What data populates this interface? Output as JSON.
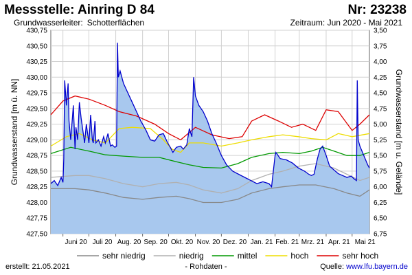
{
  "header": {
    "title": "Messstelle: Ainring D 84",
    "number": "Nr: 23238",
    "aquifer_label": "Grundwasserleiter:",
    "aquifer_value": "Schotterflächen",
    "period": "Zeitraum: Jun 2020 - Mai 2021"
  },
  "footer": {
    "created_label": "erstellt:",
    "created_date": "21.05.2021",
    "raw_note": "- Rohdaten -",
    "source_label": "Quelle:",
    "source_url": "www.lfu.bayern.de"
  },
  "colors": {
    "measured_line": "#0000cc",
    "measured_fill": "#a8c8ee",
    "sehr_niedrig": "#888888",
    "niedrig": "#b0b0b0",
    "mittel": "#009900",
    "hoch": "#eedd00",
    "sehr_hoch": "#dd0000"
  },
  "chart_data": {
    "type": "line",
    "ylabel_left": "Grundwasserstand [m ü. NN]",
    "ylabel_right": "Grundwasserstand [m u. Gelände]",
    "ylim_left": [
      427.5,
      430.75
    ],
    "ylim_right": [
      6.75,
      3.5
    ],
    "yticks_left": [
      "427,50",
      "427,75",
      "428,00",
      "428,25",
      "428,50",
      "428,75",
      "429,00",
      "429,25",
      "429,50",
      "429,75",
      "430,00",
      "430,25",
      "430,50",
      "430,75"
    ],
    "yticks_right": [
      "6,75",
      "6,50",
      "6,25",
      "6,00",
      "5,75",
      "5,50",
      "5,25",
      "5,00",
      "4,75",
      "4,50",
      "4,25",
      "4,00",
      "3,75",
      "3,50"
    ],
    "x_ticks": [
      "Juni 20",
      "Juli 20",
      "Aug. 20",
      "Sep. 20",
      "Okt. 20",
      "Nov. 20",
      "Dez. 20",
      "Jan. 21",
      "Feb. 21",
      "Mrz. 21",
      "Apr. 21",
      "Mai 21"
    ],
    "x_range": [
      "2020-05-18",
      "2021-05-21"
    ],
    "grid": true,
    "legend": [
      "sehr niedrig",
      "niedrig",
      "mittel",
      "hoch",
      "sehr hoch"
    ],
    "series": [
      {
        "name": "Rohdaten",
        "color": "#0000cc",
        "x": [
          "2020-05-18",
          "2020-05-22",
          "2020-05-26",
          "2020-05-30",
          "2020-06-01",
          "2020-06-02",
          "2020-06-03",
          "2020-06-05",
          "2020-06-07",
          "2020-06-08",
          "2020-06-10",
          "2020-06-13",
          "2020-06-15",
          "2020-06-16",
          "2020-06-18",
          "2020-06-20",
          "2020-06-22",
          "2020-06-26",
          "2020-06-28",
          "2020-07-01",
          "2020-07-03",
          "2020-07-05",
          "2020-07-06",
          "2020-07-08",
          "2020-07-09",
          "2020-07-12",
          "2020-07-15",
          "2020-07-18",
          "2020-07-20",
          "2020-07-23",
          "2020-07-26",
          "2020-07-28",
          "2020-07-31",
          "2020-08-02",
          "2020-08-03",
          "2020-08-04",
          "2020-08-06",
          "2020-08-10",
          "2020-08-15",
          "2020-08-20",
          "2020-08-25",
          "2020-08-30",
          "2020-09-05",
          "2020-09-10",
          "2020-09-15",
          "2020-09-20",
          "2020-09-25",
          "2020-09-30",
          "2020-10-03",
          "2020-10-06",
          "2020-10-10",
          "2020-10-15",
          "2020-10-18",
          "2020-10-22",
          "2020-10-25",
          "2020-10-28",
          "2020-10-30",
          "2020-11-01",
          "2020-11-05",
          "2020-11-10",
          "2020-11-15",
          "2020-11-20",
          "2020-11-25",
          "2020-12-01",
          "2020-12-07",
          "2020-12-14",
          "2020-12-21",
          "2020-12-28",
          "2021-01-04",
          "2021-01-11",
          "2021-01-18",
          "2021-01-25",
          "2021-01-28",
          "2021-02-01",
          "2021-02-02",
          "2021-02-07",
          "2021-02-14",
          "2021-02-21",
          "2021-02-28",
          "2021-03-07",
          "2021-03-12",
          "2021-03-15",
          "2021-03-18",
          "2021-03-22",
          "2021-03-25",
          "2021-03-28",
          "2021-04-01",
          "2021-04-05",
          "2021-04-10",
          "2021-04-15",
          "2021-04-20",
          "2021-04-25",
          "2021-04-30",
          "2021-05-03",
          "2021-05-05",
          "2021-05-06",
          "2021-05-07",
          "2021-05-08",
          "2021-05-10",
          "2021-05-13",
          "2021-05-16",
          "2021-05-19",
          "2021-05-21"
        ],
        "y": [
          428.3,
          428.35,
          428.27,
          428.4,
          428.32,
          428.7,
          429.95,
          429.55,
          429.9,
          429.3,
          429.0,
          429.55,
          428.85,
          429.2,
          429.0,
          429.6,
          429.35,
          428.95,
          429.25,
          428.95,
          429.4,
          429.0,
          428.95,
          429.3,
          428.95,
          429.0,
          428.9,
          429.05,
          428.95,
          429.1,
          428.9,
          428.92,
          428.88,
          428.9,
          430.55,
          430.0,
          430.1,
          429.9,
          429.75,
          429.6,
          429.45,
          429.3,
          429.15,
          429.0,
          428.98,
          429.08,
          429.1,
          428.95,
          428.88,
          428.8,
          428.88,
          428.9,
          428.85,
          428.92,
          429.18,
          429.05,
          430.0,
          429.7,
          429.55,
          429.45,
          429.3,
          429.1,
          428.95,
          428.75,
          428.6,
          428.5,
          428.45,
          428.4,
          428.35,
          428.3,
          428.33,
          428.3,
          428.25,
          428.75,
          428.8,
          428.7,
          428.68,
          428.63,
          428.55,
          428.5,
          428.45,
          428.43,
          428.45,
          428.7,
          428.85,
          428.9,
          428.75,
          428.58,
          428.52,
          428.46,
          428.43,
          428.4,
          428.42,
          428.38,
          428.36,
          428.35,
          429.95,
          429.0,
          428.9,
          428.8,
          428.7,
          428.6,
          428.55
        ]
      },
      {
        "name": "sehr niedrig",
        "color": "#888888",
        "x": [
          "2020-05-18",
          "2020-06-15",
          "2020-07-01",
          "2020-07-20",
          "2020-08-10",
          "2020-09-01",
          "2020-09-20",
          "2020-10-10",
          "2020-10-25",
          "2020-11-10",
          "2020-12-01",
          "2020-12-20",
          "2021-01-05",
          "2021-01-25",
          "2021-02-10",
          "2021-03-01",
          "2021-03-20",
          "2021-04-10",
          "2021-04-25",
          "2021-05-10",
          "2021-05-21"
        ],
        "y": [
          428.22,
          428.22,
          428.2,
          428.15,
          428.08,
          428.05,
          428.08,
          428.1,
          428.06,
          428.0,
          428.0,
          428.05,
          428.15,
          428.22,
          428.25,
          428.28,
          428.28,
          428.22,
          428.15,
          428.1,
          428.2
        ]
      },
      {
        "name": "niedrig",
        "color": "#b0b0b0",
        "x": [
          "2020-05-18",
          "2020-06-15",
          "2020-07-01",
          "2020-07-20",
          "2020-08-10",
          "2020-09-01",
          "2020-09-20",
          "2020-10-10",
          "2020-10-25",
          "2020-11-10",
          "2020-12-01",
          "2020-12-20",
          "2021-01-05",
          "2021-01-25",
          "2021-02-10",
          "2021-03-01",
          "2021-03-20",
          "2021-04-10",
          "2021-04-25",
          "2021-05-10",
          "2021-05-21"
        ],
        "y": [
          428.4,
          428.43,
          428.43,
          428.38,
          428.3,
          428.25,
          428.3,
          428.32,
          428.28,
          428.2,
          428.15,
          428.22,
          428.35,
          428.45,
          428.5,
          428.58,
          428.62,
          428.55,
          428.45,
          428.35,
          428.4
        ]
      },
      {
        "name": "mittel",
        "color": "#009900",
        "x": [
          "2020-05-18",
          "2020-06-10",
          "2020-07-01",
          "2020-07-20",
          "2020-08-10",
          "2020-09-01",
          "2020-09-20",
          "2020-10-10",
          "2020-10-25",
          "2020-11-10",
          "2020-12-01",
          "2020-12-20",
          "2021-01-05",
          "2021-01-25",
          "2021-02-10",
          "2021-03-01",
          "2021-03-15",
          "2021-03-28",
          "2021-04-10",
          "2021-04-25",
          "2021-05-10",
          "2021-05-21"
        ],
        "y": [
          428.78,
          428.88,
          428.82,
          428.76,
          428.74,
          428.72,
          428.72,
          428.65,
          428.6,
          428.56,
          428.55,
          428.62,
          428.72,
          428.78,
          428.8,
          428.78,
          428.82,
          428.88,
          428.82,
          428.75,
          428.75,
          428.8
        ]
      },
      {
        "name": "hoch",
        "color": "#eedd00",
        "x": [
          "2020-05-18",
          "2020-06-05",
          "2020-06-20",
          "2020-07-05",
          "2020-07-20",
          "2020-08-05",
          "2020-08-20",
          "2020-09-10",
          "2020-09-25",
          "2020-10-05",
          "2020-10-15",
          "2020-10-25",
          "2020-11-10",
          "2020-12-01",
          "2020-12-20",
          "2021-01-05",
          "2021-01-25",
          "2021-02-10",
          "2021-02-28",
          "2021-03-15",
          "2021-04-01",
          "2021-04-15",
          "2021-05-01",
          "2021-05-21"
        ],
        "y": [
          428.9,
          429.05,
          429.1,
          429.0,
          428.95,
          429.18,
          429.2,
          429.18,
          429.0,
          428.85,
          428.8,
          428.95,
          428.95,
          428.9,
          428.95,
          429.0,
          429.05,
          429.08,
          429.05,
          429.02,
          429.0,
          429.1,
          429.05,
          429.1
        ]
      },
      {
        "name": "sehr hoch",
        "color": "#dd0000",
        "x": [
          "2020-05-18",
          "2020-06-01",
          "2020-06-15",
          "2020-07-01",
          "2020-07-20",
          "2020-08-05",
          "2020-08-25",
          "2020-09-15",
          "2020-10-01",
          "2020-10-15",
          "2020-11-01",
          "2020-11-20",
          "2020-12-10",
          "2020-12-25",
          "2021-01-05",
          "2021-01-20",
          "2021-02-05",
          "2021-02-20",
          "2021-03-05",
          "2021-03-20",
          "2021-04-01",
          "2021-04-15",
          "2021-05-01",
          "2021-05-10",
          "2021-05-21"
        ],
        "y": [
          429.4,
          429.62,
          429.7,
          429.65,
          429.55,
          429.45,
          429.38,
          429.25,
          429.1,
          429.0,
          429.2,
          429.08,
          429.02,
          429.05,
          429.3,
          429.4,
          429.3,
          429.2,
          429.25,
          429.15,
          429.48,
          429.45,
          429.15,
          429.25,
          429.4
        ]
      }
    ]
  }
}
